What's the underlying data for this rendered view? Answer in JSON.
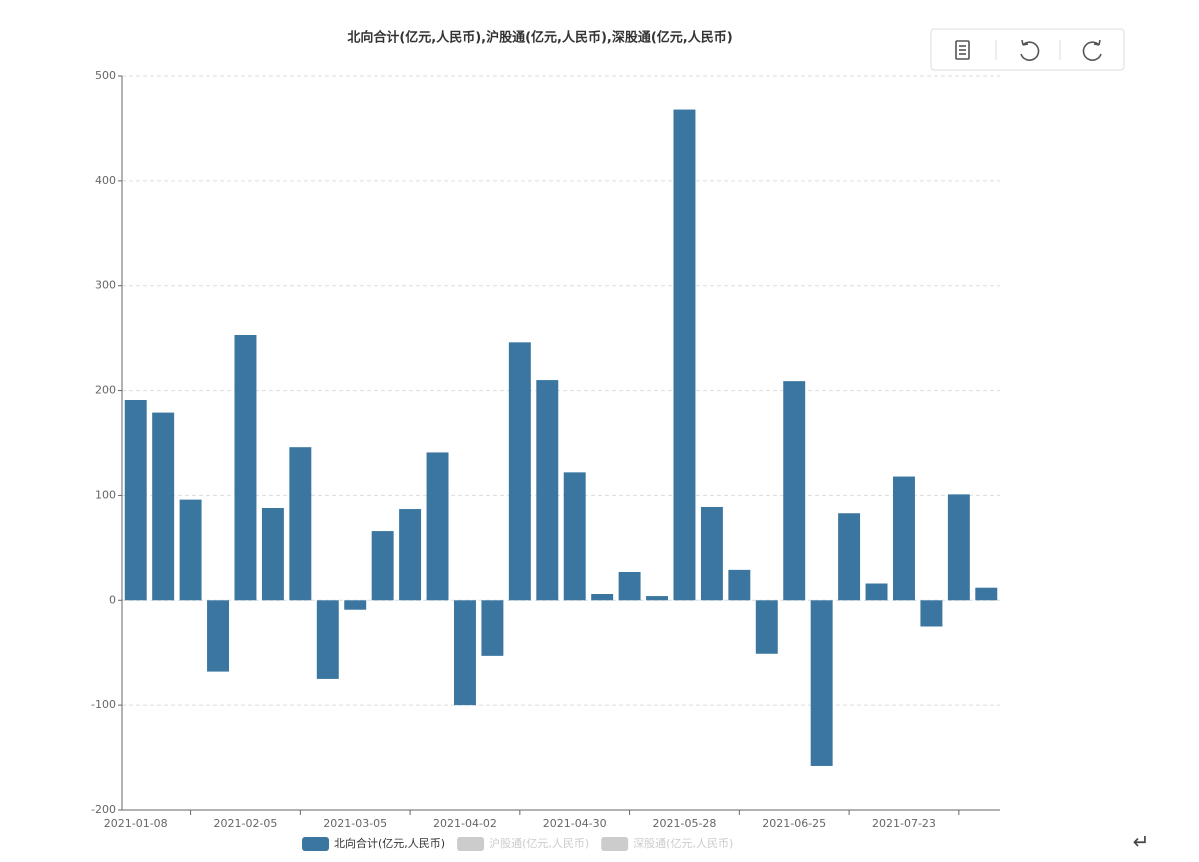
{
  "chart_data": {
    "type": "bar",
    "title": "北向合计(亿元,人民币),沪股通(亿元,人民币),深股通(亿元,人民币)",
    "categories": [
      "2021-01-08",
      null,
      null,
      null,
      "2021-02-05",
      null,
      null,
      null,
      "2021-03-05",
      null,
      null,
      null,
      "2021-04-02",
      null,
      null,
      null,
      "2021-04-30",
      null,
      null,
      null,
      "2021-05-28",
      null,
      null,
      null,
      "2021-06-25",
      null,
      null,
      null,
      "2021-07-23",
      null,
      null,
      null
    ],
    "series": [
      {
        "name": "北向合计(亿元,人民币)",
        "color": "#3a76a0",
        "visible": true,
        "values": [
          191,
          179,
          96,
          -68,
          253,
          88,
          146,
          -75,
          -9,
          66,
          87,
          141,
          -100,
          -53,
          246,
          210,
          122,
          6,
          27,
          4,
          468,
          89,
          29,
          -51,
          209,
          -158,
          83,
          16,
          118,
          -25,
          101,
          12
        ]
      },
      {
        "name": "沪股通(亿元,人民币)",
        "color": "#cccccc",
        "visible": false
      },
      {
        "name": "深股通(亿元,人民币)",
        "color": "#cccccc",
        "visible": false
      }
    ],
    "ylim": [
      -200,
      500
    ],
    "yticks": [
      -200,
      -100,
      0,
      100,
      200,
      300,
      400,
      500
    ],
    "grid": true,
    "legend": "bottom",
    "corner_mark": "↵"
  }
}
